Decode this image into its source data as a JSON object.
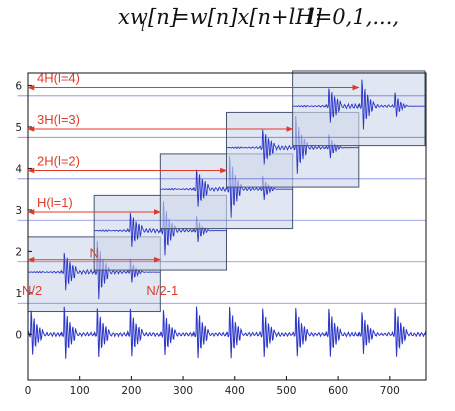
{
  "formula": {
    "lhs_main": "xw",
    "lhs_sub": "l",
    "lhs_arg": "[n]",
    "rhs": "=w[n]x[n+lH]",
    "range": "l=0,1,...,"
  },
  "chart_data": {
    "type": "line",
    "title": "",
    "xlabel": "",
    "ylabel": "",
    "x_ticks": [
      "0",
      "100",
      "200",
      "300",
      "400",
      "500",
      "600",
      "700"
    ],
    "y_ticks": [
      "0",
      "1",
      "2",
      "3",
      "4",
      "5",
      "6"
    ],
    "xlim": [
      0,
      770
    ],
    "ylim": [
      -1.1,
      6.3
    ],
    "signal": {
      "name": "",
      "baseline": 0,
      "period": 64,
      "amplitude": 0.7
    },
    "window_length": 256,
    "hop": 128,
    "frames": [
      {
        "l": 0,
        "start": 0,
        "end": 256,
        "level": 1.5,
        "label": "N",
        "left_label": "-N/2",
        "right_label": "N/2-1"
      },
      {
        "l": 1,
        "start": 128,
        "end": 384,
        "level": 2.5,
        "label": "H(l=1)"
      },
      {
        "l": 2,
        "start": 256,
        "end": 512,
        "level": 3.5,
        "label": "2H(l=2)"
      },
      {
        "l": 3,
        "start": 384,
        "end": 640,
        "level": 4.5,
        "label": "3H(l=3)"
      },
      {
        "l": 4,
        "start": 512,
        "end": 768,
        "level": 5.5,
        "label": "4H(l=4)"
      }
    ],
    "grid": false,
    "legend": "none"
  },
  "colors": {
    "signal": "#2b35c8",
    "annotation": "#e03a2a",
    "window_fill": "#cfd9ea",
    "window_stroke": "#45546e",
    "axis": "#111111"
  }
}
